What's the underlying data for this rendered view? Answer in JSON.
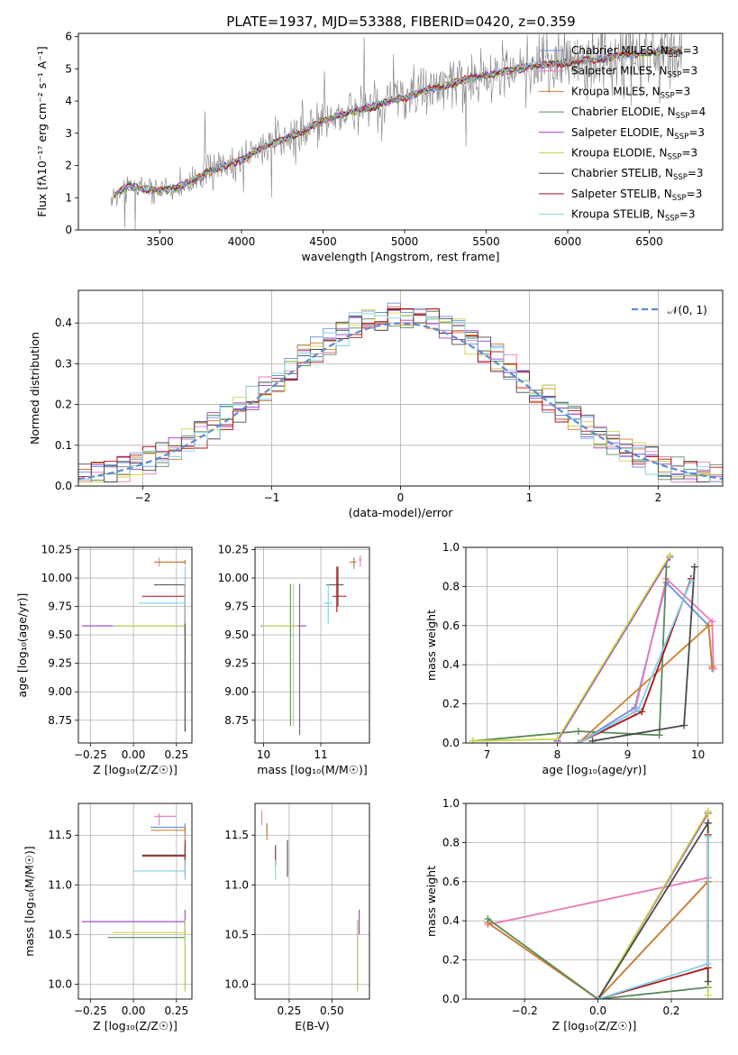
{
  "title": "PLATE=1937, MJD=53388, FIBERID=0420, z=0.359",
  "colors": {
    "Chabrier MILES": "#6a8fdc",
    "Salpeter MILES": "#e67ab8",
    "Kroupa MILES": "#d07f2c",
    "Chabrier ELODIE": "#5b8a5b",
    "Salpeter ELODIE": "#9b3dd0",
    "Kroupa ELODIE": "#c8d84a",
    "Chabrier STELIB": "#4a4a4a",
    "Salpeter STELIB": "#b01010",
    "Kroupa STELIB": "#80d0e8",
    "data": "#808080",
    "normal": "#5b8bd0"
  },
  "legend_spectrum": [
    {
      "series": "Chabrier MILES",
      "label": "Chabrier MILES, N",
      "sub": "SSP",
      "eq": "=3"
    },
    {
      "series": "Salpeter MILES",
      "label": "Salpeter MILES, N",
      "sub": "SSP",
      "eq": "=3"
    },
    {
      "series": "Kroupa MILES",
      "label": "Kroupa MILES, N",
      "sub": "SSP",
      "eq": "=3"
    },
    {
      "series": "Chabrier ELODIE",
      "label": "Chabrier ELODIE, N",
      "sub": "SSP",
      "eq": "=4"
    },
    {
      "series": "Salpeter ELODIE",
      "label": "Salpeter ELODIE, N",
      "sub": "SSP",
      "eq": "=3"
    },
    {
      "series": "Kroupa ELODIE",
      "label": "Kroupa ELODIE, N",
      "sub": "SSP",
      "eq": "=3"
    },
    {
      "series": "Chabrier STELIB",
      "label": "Chabrier STELIB, N",
      "sub": "SSP",
      "eq": "=3"
    },
    {
      "series": "Salpeter STELIB",
      "label": "Salpeter STELIB, N",
      "sub": "SSP",
      "eq": "=3"
    },
    {
      "series": "Kroupa STELIB",
      "label": "Kroupa STELIB, N",
      "sub": "SSP",
      "eq": "=3"
    }
  ],
  "legend_hist": "𝒩(0, 1)",
  "chart_data": [
    {
      "id": "spectrum",
      "type": "line",
      "xlabel": "wavelength [Angstrom, rest frame]",
      "ylabel": "Flux [fλ10⁻¹⁷ erg cm⁻² s⁻¹ A⁻¹]",
      "xlim": [
        3000,
        6950
      ],
      "ylim": [
        0,
        6.1
      ],
      "xticks": [
        3500,
        4000,
        4500,
        5000,
        5500,
        6000,
        6500
      ],
      "yticks": [
        0,
        1,
        2,
        3,
        4,
        5,
        6
      ],
      "x_start": 3200,
      "x_end": 6700,
      "continuum": [
        [
          3200,
          1.0
        ],
        [
          3300,
          1.35
        ],
        [
          3400,
          1.3
        ],
        [
          3500,
          1.2
        ],
        [
          3600,
          1.3
        ],
        [
          3700,
          1.5
        ],
        [
          3800,
          1.8
        ],
        [
          3900,
          2.0
        ],
        [
          4000,
          2.15
        ],
        [
          4100,
          2.5
        ],
        [
          4200,
          2.7
        ],
        [
          4300,
          2.9
        ],
        [
          4400,
          3.1
        ],
        [
          4500,
          3.4
        ],
        [
          4600,
          3.55
        ],
        [
          4700,
          3.7
        ],
        [
          4800,
          3.8
        ],
        [
          4900,
          4.0
        ],
        [
          5000,
          4.1
        ],
        [
          5100,
          4.3
        ],
        [
          5200,
          4.4
        ],
        [
          5300,
          4.55
        ],
        [
          5400,
          4.7
        ],
        [
          5500,
          4.8
        ],
        [
          5600,
          4.9
        ],
        [
          5700,
          5.0
        ],
        [
          5800,
          5.1
        ],
        [
          5900,
          5.15
        ],
        [
          6000,
          5.2
        ],
        [
          6100,
          5.25
        ],
        [
          6200,
          5.3
        ],
        [
          6300,
          5.4
        ],
        [
          6400,
          5.45
        ],
        [
          6500,
          5.5
        ],
        [
          6600,
          5.55
        ],
        [
          6700,
          5.6
        ]
      ]
    },
    {
      "id": "residuals",
      "type": "step-histogram",
      "xlabel": "(data-model)/error",
      "ylabel": "Normed distribution",
      "xlim": [
        -2.5,
        2.5
      ],
      "ylim": [
        0,
        0.48
      ],
      "xticks": [
        -2,
        -1,
        0,
        1,
        2
      ],
      "yticks": [
        0,
        0.1,
        0.2,
        0.3,
        0.4
      ],
      "bin_width": 0.1,
      "normal": {
        "mean": 0,
        "sigma": 1,
        "range": [
          -2.5,
          2.5
        ]
      }
    },
    {
      "id": "age-vs-Z",
      "type": "errorbar",
      "xlabel": "Z [log₁₀(Z/Z☉)]",
      "ylabel": "age  [log₁₀(age/yr)]",
      "xlim": [
        -0.32,
        0.34
      ],
      "ylim": [
        8.55,
        10.27
      ],
      "xticks": [
        -0.25,
        0,
        0.25
      ],
      "xticklabels": [
        "−0.25",
        "0.00",
        "0.25"
      ],
      "yticks": [
        8.75,
        9.0,
        9.25,
        9.5,
        9.75,
        10.0,
        10.25
      ],
      "points": [
        {
          "series": "Chabrier MILES",
          "x": 0.3,
          "y": 10.14,
          "xl": 0.12,
          "xh": 0.3,
          "yl": 10.12,
          "yh": 10.16
        },
        {
          "series": "Salpeter MILES",
          "x": 0.15,
          "y": 10.14,
          "xl": 0.12,
          "xh": 0.3,
          "yl": 10.1,
          "yh": 10.18
        },
        {
          "series": "Kroupa MILES",
          "x": 0.3,
          "y": 10.14,
          "xl": 0.12,
          "xh": 0.3,
          "yl": 10.12,
          "yh": 10.16
        },
        {
          "series": "Chabrier ELODIE",
          "x": 0.3,
          "y": 9.58,
          "xl": -0.12,
          "xh": 0.3,
          "yl": 9.5,
          "yh": 9.6
        },
        {
          "series": "Salpeter ELODIE",
          "x": 0.3,
          "y": 9.58,
          "xl": -0.3,
          "xh": 0.3,
          "yl": 9.5,
          "yh": 9.6
        },
        {
          "series": "Kroupa ELODIE",
          "x": 0.3,
          "y": 9.58,
          "xl": -0.12,
          "xh": 0.3,
          "yl": 8.65,
          "yh": 9.6
        },
        {
          "series": "Chabrier STELIB",
          "x": 0.3,
          "y": 9.94,
          "xl": 0.12,
          "xh": 0.3,
          "yl": 8.65,
          "yh": 9.94
        },
        {
          "series": "Salpeter STELIB",
          "x": 0.3,
          "y": 9.84,
          "xl": 0.05,
          "xh": 0.3,
          "yl": 9.6,
          "yh": 9.95
        },
        {
          "series": "Kroupa STELIB",
          "x": 0.3,
          "y": 9.78,
          "xl": 0.03,
          "xh": 0.3,
          "yl": 9.6,
          "yh": 10.1
        }
      ]
    },
    {
      "id": "age-vs-mass",
      "type": "errorbar",
      "xlabel": "mass [log₁₀(M/M☉)]",
      "xlim": [
        9.85,
        11.85
      ],
      "ylim": [
        8.55,
        10.27
      ],
      "xticks": [
        10,
        11
      ],
      "yticks": [
        8.75,
        9.0,
        9.25,
        9.5,
        9.75,
        10.0,
        10.25
      ],
      "points": [
        {
          "series": "Chabrier MILES",
          "x": 11.58,
          "y": 10.14,
          "xl": 11.55,
          "xh": 11.62,
          "yl": 10.08,
          "yh": 10.18
        },
        {
          "series": "Salpeter MILES",
          "x": 11.69,
          "y": 10.16,
          "xl": 11.66,
          "xh": 11.72,
          "yl": 10.1,
          "yh": 10.2
        },
        {
          "series": "Kroupa MILES",
          "x": 11.58,
          "y": 10.14,
          "xl": 11.5,
          "xh": 11.62,
          "yl": 10.1,
          "yh": 10.18
        },
        {
          "series": "Chabrier ELODIE",
          "x": 10.47,
          "y": 9.58,
          "xl": 9.95,
          "xh": 10.6,
          "yl": 8.7,
          "yh": 9.95
        },
        {
          "series": "Salpeter ELODIE",
          "x": 10.63,
          "y": 9.58,
          "xl": 10.2,
          "xh": 10.75,
          "yl": 8.62,
          "yh": 9.95
        },
        {
          "series": "Kroupa ELODIE",
          "x": 10.52,
          "y": 9.58,
          "xl": 9.98,
          "xh": 10.6,
          "yl": 8.7,
          "yh": 9.95
        },
        {
          "series": "Chabrier STELIB",
          "x": 11.3,
          "y": 9.94,
          "xl": 11.1,
          "xh": 11.4,
          "yl": 9.75,
          "yh": 10.1
        },
        {
          "series": "Salpeter STELIB",
          "x": 11.28,
          "y": 9.84,
          "xl": 11.2,
          "xh": 11.45,
          "yl": 9.7,
          "yh": 10.1
        },
        {
          "series": "Kroupa STELIB",
          "x": 11.13,
          "y": 9.78,
          "xl": 11.05,
          "xh": 11.2,
          "yl": 9.6,
          "yh": 9.95
        }
      ]
    },
    {
      "id": "weight-vs-age",
      "type": "line",
      "xlabel": "age  [log₁₀(age/yr)]",
      "ylabel": "mass weight",
      "xlim": [
        6.7,
        10.35
      ],
      "ylim": [
        0,
        1
      ],
      "xticks": [
        7,
        8,
        9,
        10
      ],
      "yticks": [
        0,
        0.2,
        0.4,
        0.6,
        0.8,
        1.0
      ],
      "series": [
        {
          "name": "Chabrier MILES",
          "points": [
            [
              8.3,
              0.0
            ],
            [
              9.1,
              0.18
            ],
            [
              9.55,
              0.82
            ],
            [
              10.15,
              0.6
            ],
            [
              10.2,
              0.38
            ]
          ]
        },
        {
          "name": "Salpeter MILES",
          "points": [
            [
              8.3,
              0.0
            ],
            [
              9.1,
              0.16
            ],
            [
              9.55,
              0.84
            ],
            [
              10.2,
              0.62
            ],
            [
              10.22,
              0.38
            ]
          ]
        },
        {
          "name": "Kroupa MILES",
          "points": [
            [
              8.3,
              0.0
            ],
            [
              10.15,
              0.6
            ],
            [
              10.2,
              0.39
            ]
          ]
        },
        {
          "name": "Chabrier ELODIE",
          "points": [
            [
              6.8,
              0.01
            ],
            [
              8.3,
              0.06
            ],
            [
              9.45,
              0.04
            ],
            [
              9.55,
              0.9
            ]
          ]
        },
        {
          "name": "Salpeter ELODIE",
          "points": [
            [
              8.0,
              0.01
            ],
            [
              9.6,
              0.95
            ]
          ]
        },
        {
          "name": "Kroupa ELODIE",
          "points": [
            [
              6.8,
              0.01
            ],
            [
              8.0,
              0.02
            ],
            [
              9.6,
              0.96
            ]
          ]
        },
        {
          "name": "Chabrier STELIB",
          "points": [
            [
              8.5,
              0.01
            ],
            [
              9.8,
              0.09
            ],
            [
              9.95,
              0.9
            ]
          ]
        },
        {
          "name": "Salpeter STELIB",
          "points": [
            [
              8.3,
              0.0
            ],
            [
              9.2,
              0.16
            ],
            [
              9.9,
              0.84
            ]
          ]
        },
        {
          "name": "Kroupa STELIB",
          "points": [
            [
              8.3,
              0.0
            ],
            [
              9.15,
              0.17
            ],
            [
              9.9,
              0.83
            ]
          ]
        }
      ]
    },
    {
      "id": "mass-vs-Z",
      "type": "errorbar",
      "xlabel": "Z [log₁₀(Z/Z☉)]",
      "ylabel": "mass [log₁₀(M/M☉)]",
      "xlim": [
        -0.32,
        0.34
      ],
      "ylim": [
        9.85,
        11.82
      ],
      "xticks": [
        -0.25,
        0,
        0.25
      ],
      "xticklabels": [
        "−0.25",
        "0.00",
        "0.25"
      ],
      "yticks": [
        10.0,
        10.5,
        11.0,
        11.5
      ],
      "points": [
        {
          "series": "Chabrier MILES",
          "x": 0.3,
          "y": 11.58,
          "xl": 0.1,
          "xh": 0.3,
          "yl": 11.5,
          "yh": 11.62
        },
        {
          "series": "Salpeter MILES",
          "x": 0.15,
          "y": 11.69,
          "xl": 0.12,
          "xh": 0.25,
          "yl": 11.6,
          "yh": 11.72
        },
        {
          "series": "Kroupa MILES",
          "x": 0.3,
          "y": 11.55,
          "xl": 0.1,
          "xh": 0.3,
          "yl": 11.45,
          "yh": 11.6
        },
        {
          "series": "Chabrier ELODIE",
          "x": 0.3,
          "y": 10.47,
          "xl": -0.15,
          "xh": 0.3,
          "yl": 9.95,
          "yh": 10.65
        },
        {
          "series": "Salpeter ELODIE",
          "x": 0.3,
          "y": 10.63,
          "xl": -0.3,
          "xh": 0.3,
          "yl": 10.5,
          "yh": 10.75
        },
        {
          "series": "Kroupa ELODIE",
          "x": 0.3,
          "y": 10.52,
          "xl": -0.12,
          "xh": 0.3,
          "yl": 9.92,
          "yh": 10.65
        },
        {
          "series": "Chabrier STELIB",
          "x": 0.3,
          "y": 11.3,
          "xl": 0.05,
          "xh": 0.3,
          "yl": 11.1,
          "yh": 11.4
        },
        {
          "series": "Salpeter STELIB",
          "x": 0.3,
          "y": 11.29,
          "xl": 0.05,
          "xh": 0.3,
          "yl": 11.2,
          "yh": 11.45
        },
        {
          "series": "Kroupa STELIB",
          "x": 0.3,
          "y": 11.14,
          "xl": 0.0,
          "xh": 0.3,
          "yl": 11.05,
          "yh": 11.25
        }
      ]
    },
    {
      "id": "mass-vs-EBV",
      "type": "errorbar",
      "xlabel": "E(B-V)",
      "xlim": [
        0.05,
        0.72
      ],
      "ylim": [
        9.85,
        11.82
      ],
      "xticks": [
        0.25,
        0.5
      ],
      "xticklabels": [
        "0.25",
        "0.50"
      ],
      "yticks": [
        10.0,
        10.5,
        11.0,
        11.5
      ],
      "points": [
        {
          "series": "Chabrier MILES",
          "x": 0.12,
          "y": 11.58,
          "yl": 11.5,
          "yh": 11.62
        },
        {
          "series": "Salpeter MILES",
          "x": 0.09,
          "y": 11.69,
          "yl": 11.6,
          "yh": 11.75
        },
        {
          "series": "Kroupa MILES",
          "x": 0.12,
          "y": 11.55,
          "yl": 11.45,
          "yh": 11.62
        },
        {
          "series": "Chabrier ELODIE",
          "x": 0.65,
          "y": 10.47,
          "yl": 9.95,
          "yh": 10.65
        },
        {
          "series": "Salpeter ELODIE",
          "x": 0.66,
          "y": 10.63,
          "yl": 10.5,
          "yh": 10.75
        },
        {
          "series": "Kroupa ELODIE",
          "x": 0.65,
          "y": 10.52,
          "yl": 9.92,
          "yh": 10.65
        },
        {
          "series": "Chabrier STELIB",
          "x": 0.24,
          "y": 11.3,
          "yl": 11.08,
          "yh": 11.45
        },
        {
          "series": "Salpeter STELIB",
          "x": 0.17,
          "y": 11.29,
          "yl": 11.2,
          "yh": 11.4
        },
        {
          "series": "Kroupa STELIB",
          "x": 0.17,
          "y": 11.14,
          "yl": 11.05,
          "yh": 11.25
        }
      ]
    },
    {
      "id": "weight-vs-Z",
      "type": "line",
      "xlabel": "Z [log₁₀(Z/Z☉)]",
      "ylabel": "mass weight",
      "xlim": [
        -0.36,
        0.34
      ],
      "ylim": [
        0,
        1
      ],
      "xticks": [
        -0.2,
        0,
        0.2
      ],
      "xticklabels": [
        "−0.2",
        "0.0",
        "0.2"
      ],
      "yticks": [
        0,
        0.2,
        0.4,
        0.6,
        0.8,
        1.0
      ],
      "series": [
        {
          "name": "Chabrier MILES",
          "points": [
            [
              -0.3,
              0.39
            ],
            [
              0.0,
              0.0
            ],
            [
              0.3,
              0.6
            ]
          ]
        },
        {
          "name": "Salpeter MILES",
          "points": [
            [
              -0.3,
              0.38
            ],
            [
              0.3,
              0.62
            ]
          ]
        },
        {
          "name": "Kroupa MILES",
          "points": [
            [
              -0.3,
              0.39
            ],
            [
              0.0,
              0.0
            ],
            [
              0.3,
              0.6
            ]
          ]
        },
        {
          "name": "Chabrier ELODIE",
          "points": [
            [
              -0.3,
              0.41
            ],
            [
              0.0,
              0.0
            ],
            [
              0.3,
              0.06
            ],
            [
              0.3,
              0.9
            ]
          ]
        },
        {
          "name": "Salpeter ELODIE",
          "points": [
            [
              0.0,
              0.0
            ],
            [
              0.3,
              0.95
            ]
          ]
        },
        {
          "name": "Kroupa ELODIE",
          "points": [
            [
              0.0,
              0.0
            ],
            [
              0.3,
              0.96
            ],
            [
              0.3,
              0.02
            ]
          ]
        },
        {
          "name": "Chabrier STELIB",
          "points": [
            [
              0.0,
              0.0
            ],
            [
              0.3,
              0.9
            ],
            [
              0.3,
              0.09
            ]
          ]
        },
        {
          "name": "Salpeter STELIB",
          "points": [
            [
              0.0,
              0.0
            ],
            [
              0.3,
              0.16
            ],
            [
              0.3,
              0.84
            ]
          ]
        },
        {
          "name": "Kroupa STELIB",
          "points": [
            [
              0.0,
              0.0
            ],
            [
              0.3,
              0.18
            ],
            [
              0.3,
              0.83
            ]
          ]
        }
      ]
    }
  ]
}
